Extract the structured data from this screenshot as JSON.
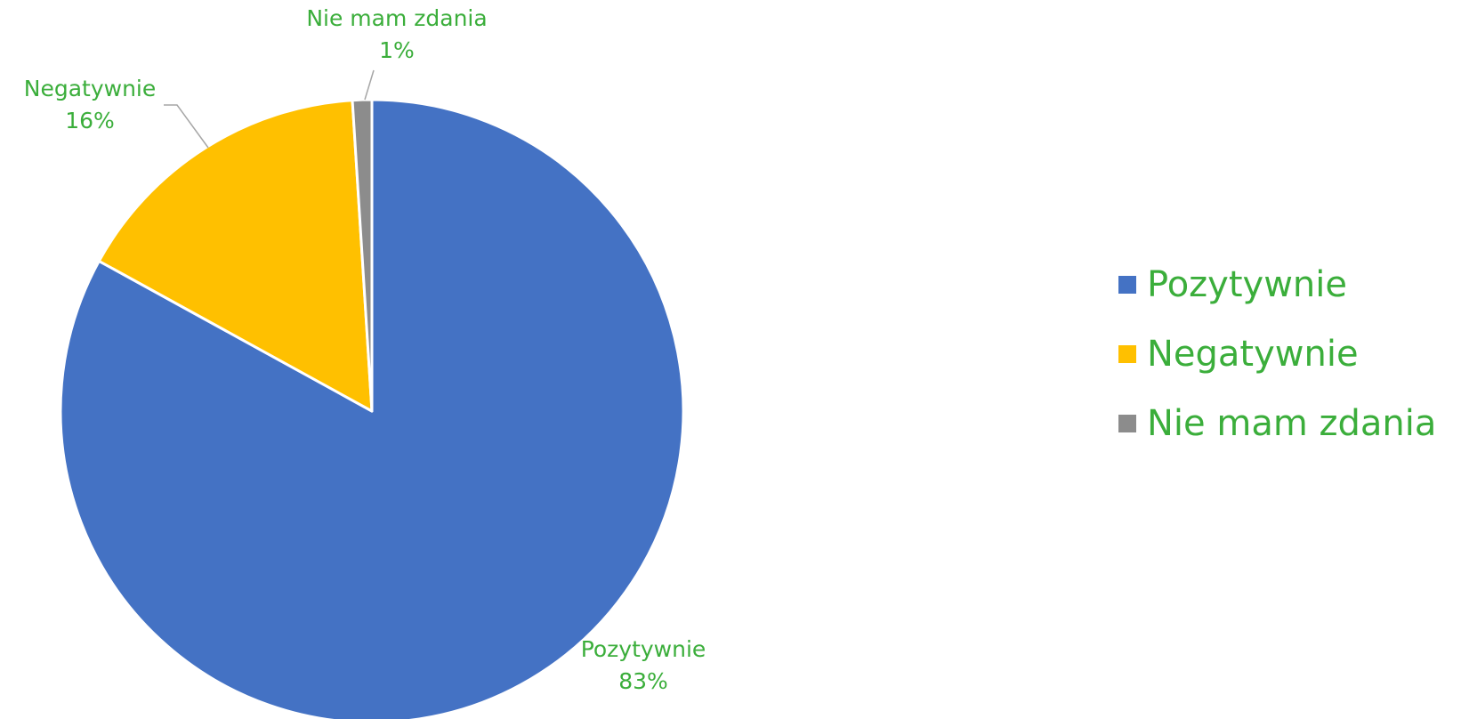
{
  "chart_data": {
    "type": "pie",
    "start_angle_deg": 0,
    "direction": "clockwise",
    "label_color": "#3BAE3B",
    "leader_line_color": "#A6A6A6",
    "slice_border_color": "#FFFFFF",
    "legend_position": "right",
    "slices": [
      {
        "label": "Pozytywnie",
        "value": 83,
        "display": "83%",
        "color": "#4472C4"
      },
      {
        "label": "Negatywnie",
        "value": 16,
        "display": "16%",
        "color": "#FFC000"
      },
      {
        "label": "Nie mam zdania",
        "value": 1,
        "display": "1%",
        "color": "#8C8C8C"
      }
    ]
  }
}
